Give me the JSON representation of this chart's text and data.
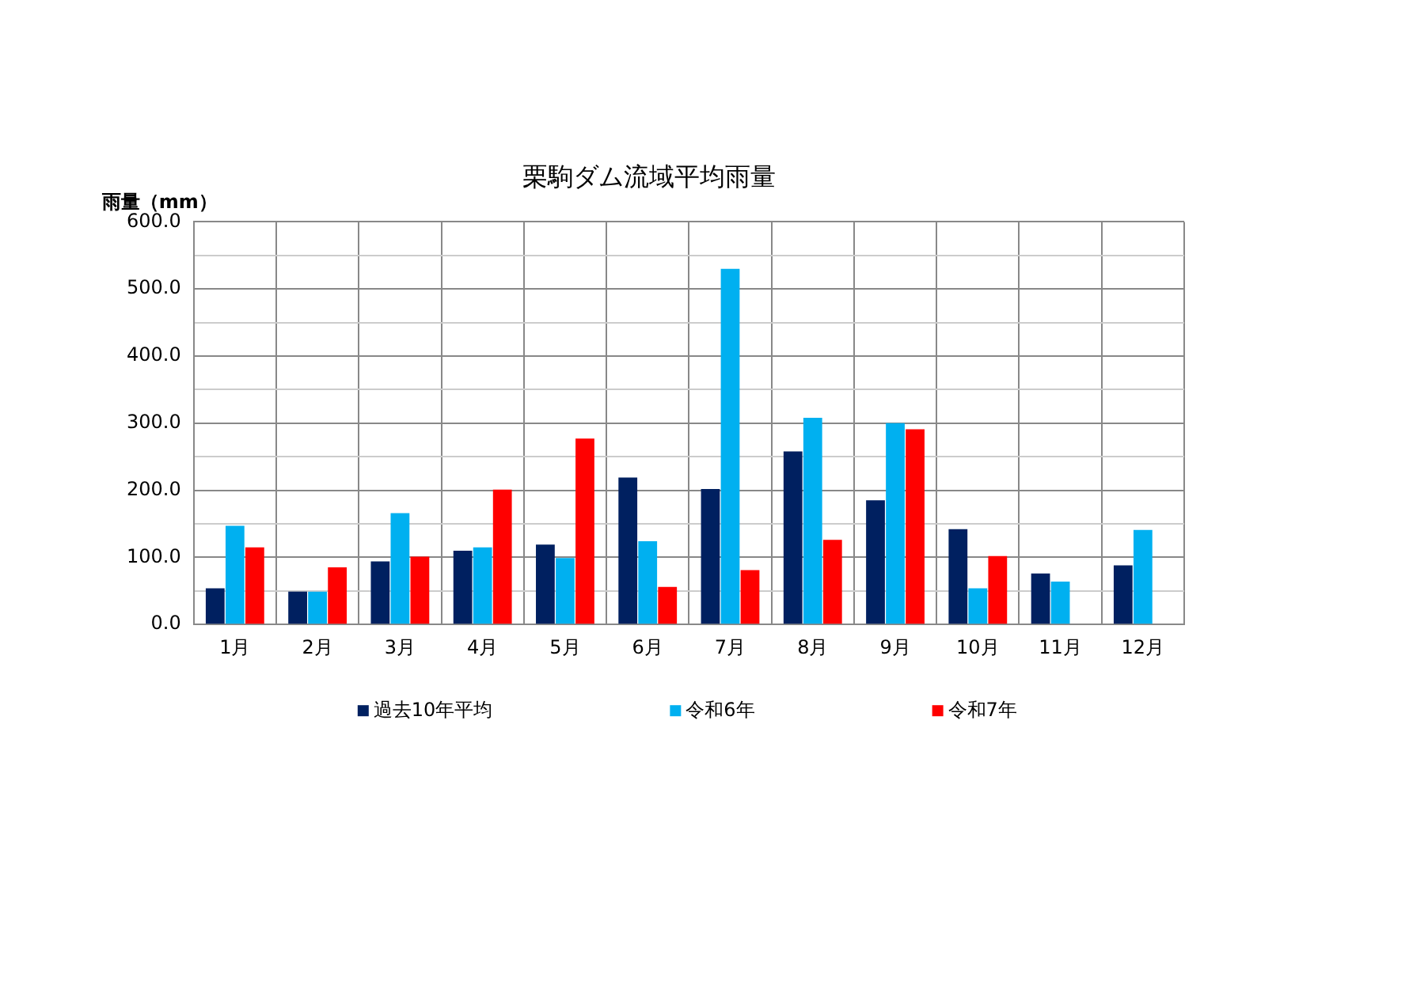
{
  "chart_data": {
    "type": "bar",
    "title": "栗駒ダム流域平均雨量",
    "ylabel": "雨量（mm）",
    "categories": [
      "1月",
      "2月",
      "3月",
      "4月",
      "5月",
      "6月",
      "7月",
      "8月",
      "9月",
      "10月",
      "11月",
      "12月"
    ],
    "series": [
      {
        "name": "過去10年平均",
        "color": "#002060",
        "values": [
          54,
          49,
          94,
          110,
          119,
          219,
          202,
          258,
          185,
          142,
          76,
          88
        ]
      },
      {
        "name": "令和6年",
        "color": "#00b0f0",
        "values": [
          147,
          49,
          166,
          115,
          99,
          124,
          530,
          308,
          300,
          54,
          64,
          141
        ]
      },
      {
        "name": "令和7年",
        "color": "#ff0000",
        "values": [
          115,
          85,
          101,
          201,
          277,
          56,
          81,
          126,
          291,
          102,
          null,
          null
        ]
      }
    ],
    "ylim": [
      0,
      600
    ],
    "yticks": [
      {
        "value": 0,
        "label": "0.0"
      },
      {
        "value": 50,
        "label": null
      },
      {
        "value": 100,
        "label": "100.0"
      },
      {
        "value": 150,
        "label": null
      },
      {
        "value": 200,
        "label": "200.0"
      },
      {
        "value": 250,
        "label": null
      },
      {
        "value": 300,
        "label": "300.0"
      },
      {
        "value": 350,
        "label": null
      },
      {
        "value": 400,
        "label": "400.0"
      },
      {
        "value": 450,
        "label": null
      },
      {
        "value": 500,
        "label": "500.0"
      },
      {
        "value": 550,
        "label": null
      },
      {
        "value": 600,
        "label": "600.0"
      }
    ],
    "grid": true,
    "legend": "bottom"
  }
}
